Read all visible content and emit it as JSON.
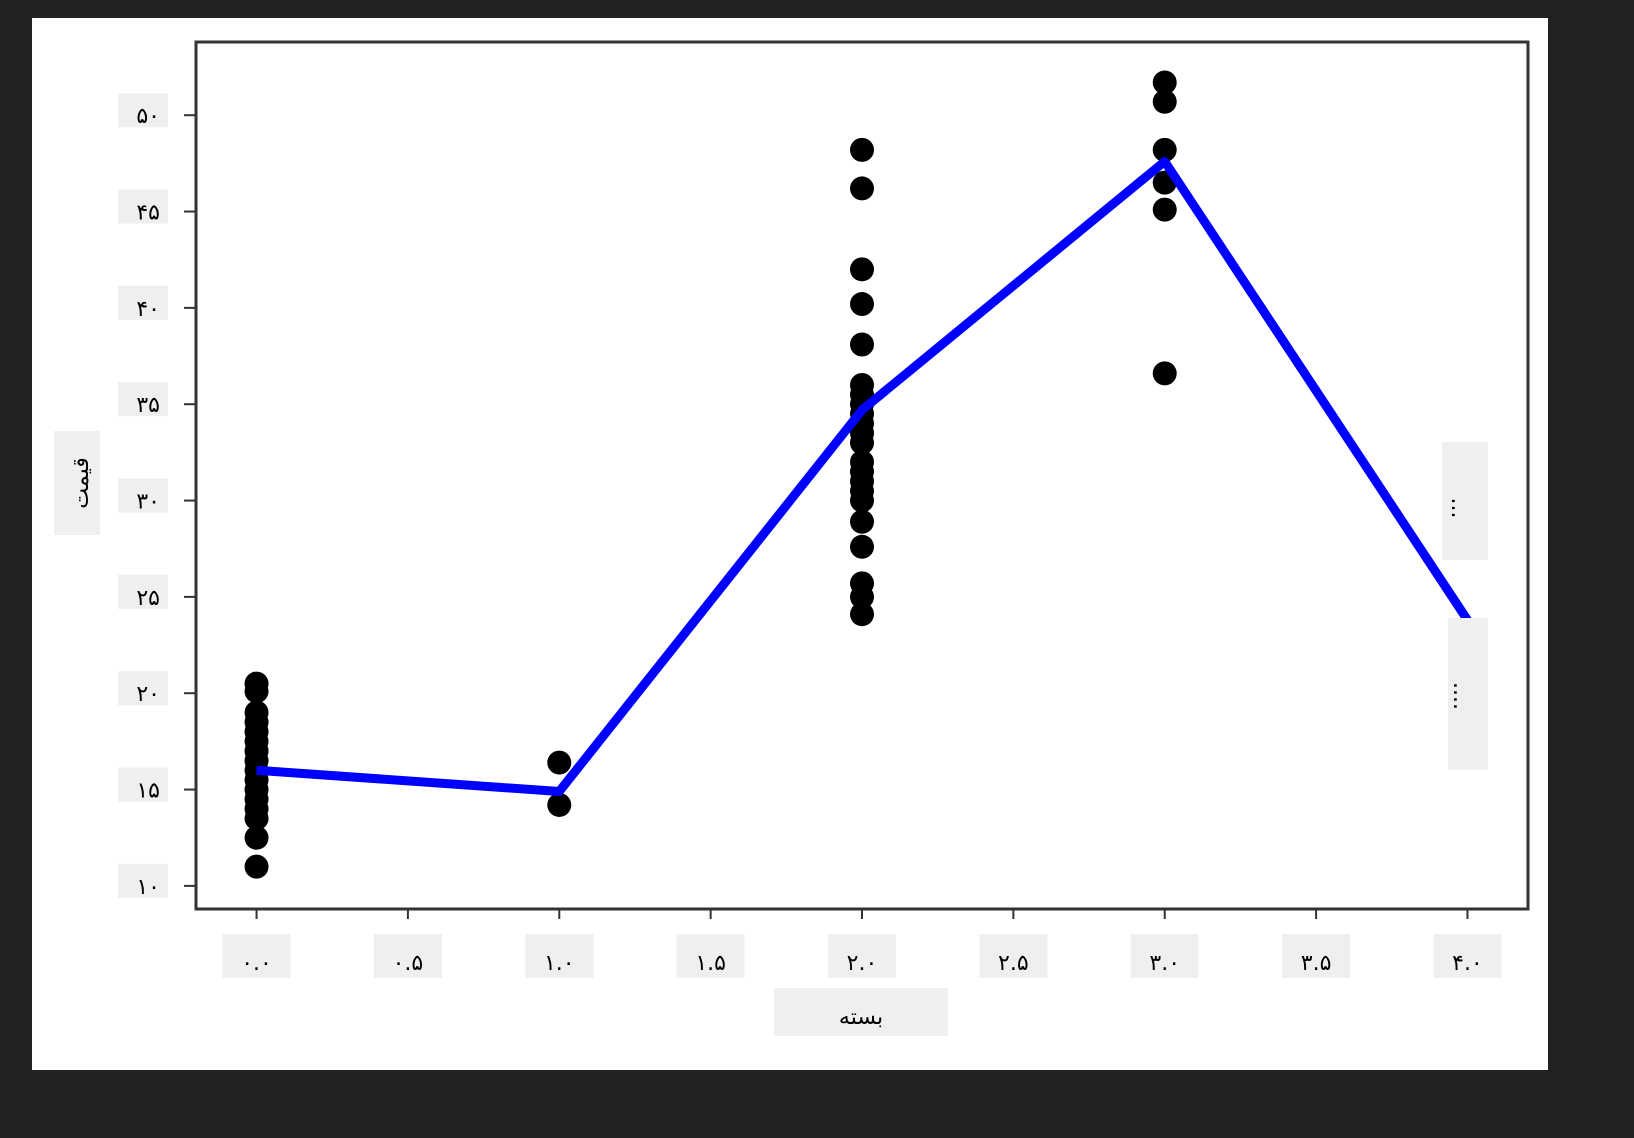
{
  "chart_data": {
    "type": "scatter",
    "xlabel": "بسته",
    "ylabel": "قیمت",
    "xlim": [
      -0.2,
      4.2
    ],
    "ylim": [
      8.8,
      53.8
    ],
    "grid": false,
    "x_ticks": [
      0,
      0.5,
      1,
      1.5,
      2,
      2.5,
      3,
      3.5,
      4
    ],
    "x_tick_labels": [
      "۰.۰",
      "۰.۵",
      "۱.۰",
      "۱.۵",
      "۲.۰",
      "۲.۵",
      "۳.۰",
      "۳.۵",
      "۴.۰"
    ],
    "y_ticks": [
      10,
      15,
      20,
      25,
      30,
      35,
      40,
      45,
      50
    ],
    "y_tick_labels": [
      "۱۰",
      "۱۵",
      "۲۰",
      "۲۵",
      "۳۰",
      "۳۵",
      "۴۰",
      "۴۵",
      "۵۰"
    ],
    "right_labels": [
      "...",
      "...."
    ],
    "scatter": {
      "color": "#000000",
      "points": [
        [
          0,
          20.5
        ],
        [
          0,
          20.1
        ],
        [
          0,
          19.0
        ],
        [
          0,
          18.5
        ],
        [
          0,
          18.0
        ],
        [
          0,
          17.5
        ],
        [
          0,
          17.0
        ],
        [
          0,
          16.5
        ],
        [
          0,
          16.0
        ],
        [
          0,
          15.5
        ],
        [
          0,
          15.0
        ],
        [
          0,
          14.5
        ],
        [
          0,
          14.0
        ],
        [
          0,
          13.5
        ],
        [
          0,
          12.5
        ],
        [
          0,
          11.0
        ],
        [
          1,
          16.4
        ],
        [
          1,
          14.2
        ],
        [
          2,
          48.2
        ],
        [
          2,
          46.2
        ],
        [
          2,
          42.0
        ],
        [
          2,
          40.2
        ],
        [
          2,
          38.1
        ],
        [
          2,
          36.0
        ],
        [
          2,
          35.5
        ],
        [
          2,
          35.0
        ],
        [
          2,
          34.5
        ],
        [
          2,
          34.0
        ],
        [
          2,
          33.5
        ],
        [
          2,
          33.0
        ],
        [
          2,
          32.0
        ],
        [
          2,
          31.5
        ],
        [
          2,
          31.0
        ],
        [
          2,
          30.5
        ],
        [
          2,
          30.0
        ],
        [
          2,
          28.9
        ],
        [
          2,
          27.6
        ],
        [
          2,
          25.7
        ],
        [
          2,
          25.0
        ],
        [
          2,
          24.1
        ],
        [
          3,
          51.7
        ],
        [
          3,
          50.7
        ],
        [
          3,
          48.2
        ],
        [
          3,
          46.5
        ],
        [
          3,
          45.1
        ],
        [
          3,
          36.6
        ]
      ]
    },
    "line": {
      "color": "#0000ff",
      "x": [
        0,
        1,
        2,
        3,
        4
      ],
      "y": [
        16.0,
        14.9,
        34.7,
        47.6,
        23.8
      ]
    }
  }
}
